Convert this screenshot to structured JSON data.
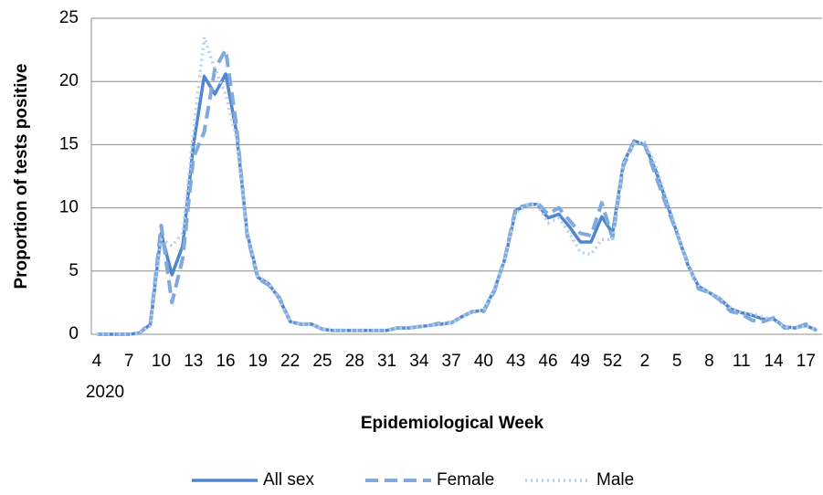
{
  "chart_data": {
    "type": "line",
    "xlabel": "Epidemiological Week",
    "ylabel": "Proportion of tests positive",
    "x_sublabel": "2020",
    "categories": [
      "4",
      null,
      null,
      "7",
      null,
      null,
      "10",
      null,
      null,
      "13",
      null,
      null,
      "16",
      null,
      null,
      "19",
      null,
      null,
      "22",
      null,
      null,
      "25",
      null,
      null,
      "28",
      null,
      null,
      "31",
      null,
      null,
      "34",
      null,
      null,
      "37",
      null,
      null,
      "40",
      null,
      null,
      "43",
      null,
      null,
      "46",
      null,
      null,
      "49",
      null,
      null,
      "52",
      null,
      null,
      "2",
      null,
      null,
      "5",
      null,
      null,
      "8",
      null,
      null,
      "11",
      null,
      null,
      "14",
      null,
      null,
      "17",
      null
    ],
    "series": [
      {
        "name": "All sex",
        "color": "#4f86cf",
        "style": "solid",
        "values": [
          0,
          0,
          0,
          0,
          0.1,
          0.8,
          8,
          4.7,
          7,
          15,
          20.4,
          19,
          20.6,
          16,
          8,
          4.5,
          4,
          2.8,
          1,
          0.8,
          0.8,
          0.4,
          0.3,
          0.3,
          0.3,
          0.3,
          0.3,
          0.3,
          0.5,
          0.5,
          0.6,
          0.7,
          0.8,
          0.9,
          1.4,
          1.8,
          1.9,
          3.5,
          6,
          9.8,
          10.2,
          10.3,
          9.2,
          9.5,
          8.5,
          7.3,
          7.3,
          9.3,
          8,
          13.5,
          15.3,
          15,
          13,
          10.5,
          8,
          5.5,
          3.8,
          3.3,
          2.8,
          2,
          1.7,
          1.5,
          1.2,
          1.2,
          0.6,
          0.5,
          0.7,
          0.3
        ]
      },
      {
        "name": "Female",
        "color": "#80a9dd",
        "style": "dashed",
        "values": [
          0,
          0,
          0,
          0,
          0.1,
          0.9,
          8.6,
          2.5,
          6,
          14,
          16,
          21,
          22.5,
          16.5,
          7.8,
          4.4,
          3.9,
          2.9,
          1,
          0.8,
          0.8,
          0.4,
          0.3,
          0.3,
          0.3,
          0.3,
          0.3,
          0.3,
          0.5,
          0.5,
          0.6,
          0.7,
          0.9,
          0.9,
          1.4,
          1.8,
          1.8,
          3.4,
          6.1,
          10,
          10.2,
          10.4,
          9.5,
          10,
          9,
          8,
          7.8,
          10.4,
          7.6,
          13.3,
          15.2,
          15,
          12.6,
          10.2,
          8,
          5.6,
          3.6,
          3.3,
          2.7,
          1.8,
          1.6,
          1.1,
          1,
          1.3,
          0.5,
          0.5,
          0.8,
          0.3
        ]
      },
      {
        "name": "Male",
        "color": "#b5cfee",
        "style": "dotted",
        "values": [
          0,
          0,
          0,
          0,
          0.1,
          0.7,
          7.5,
          7,
          8,
          16,
          23.5,
          21,
          19,
          15.5,
          8.2,
          4.6,
          4.1,
          2.7,
          1,
          0.8,
          0.8,
          0.4,
          0.3,
          0.3,
          0.3,
          0.3,
          0.3,
          0.3,
          0.5,
          0.5,
          0.6,
          0.7,
          0.8,
          0.9,
          1.4,
          1.8,
          1.9,
          3.6,
          6,
          9.6,
          10.2,
          10.3,
          8.8,
          9.2,
          8,
          6.5,
          6.3,
          7.5,
          7.5,
          13.6,
          15.1,
          15.2,
          13.4,
          10.8,
          8.2,
          5.4,
          3.9,
          3.3,
          2.9,
          2.1,
          1.7,
          1.6,
          1.4,
          1.1,
          0.6,
          0.5,
          0.7,
          0.3
        ]
      }
    ],
    "ylim": [
      0,
      25
    ],
    "yticks": [
      0,
      5,
      10,
      15,
      20,
      25
    ],
    "grid": true,
    "legend": "bottom"
  }
}
